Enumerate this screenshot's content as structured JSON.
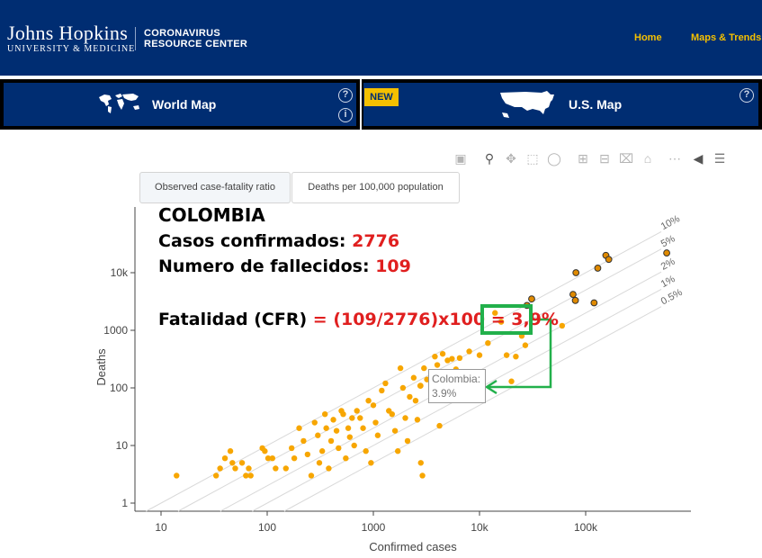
{
  "header": {
    "brand_main": "Johns Hopkins",
    "brand_sub": "UNIVERSITY & MEDICINE",
    "crc_line1": "CORONAVIRUS",
    "crc_line2": "RESOURCE CENTER",
    "nav": {
      "home": "Home",
      "maps": "Maps & Trends"
    }
  },
  "map_tiles": {
    "world": {
      "label": "World Map",
      "icon": "world-map-icon"
    },
    "us": {
      "label": "U.S. Map",
      "icon": "us-map-icon",
      "badge": "NEW"
    }
  },
  "modebar_icons": [
    "camera-icon",
    "zoom-icon",
    "pan-icon",
    "box-select-icon",
    "lasso-icon",
    "zoom-in-icon",
    "zoom-out-icon",
    "autoscale-icon",
    "reset-axes-icon",
    "spike-lines-icon",
    "hover-closest-icon",
    "hover-compare-icon"
  ],
  "tabs": [
    {
      "label": "Observed case-fatality ratio",
      "active": true
    },
    {
      "label": "Deaths per 100,000 population",
      "active": false
    }
  ],
  "annotation": {
    "country": "COLOMBIA",
    "cases_label": "Casos confirmados: ",
    "cases_value": "2776",
    "deaths_label": "Numero de fallecidos: ",
    "deaths_value": "109",
    "cfr_label": "Fatalidad (CFR) ",
    "cfr_formula": "= (109/2776)x100 = ",
    "cfr_value": "3,9%",
    "highlight_color": "#22b04b",
    "text_red": "#e01f1f"
  },
  "tooltip": {
    "name": "Colombia:",
    "value": "3.9%"
  },
  "chart_data": {
    "type": "scatter",
    "xlabel": "Confirmed cases",
    "ylabel": "Deaths",
    "x_scale": "log",
    "y_scale": "log",
    "xlim": [
      5,
      1000000
    ],
    "ylim": [
      0.5,
      50000
    ],
    "x_ticks": [
      {
        "v": 10,
        "label": "10"
      },
      {
        "v": 100,
        "label": "100"
      },
      {
        "v": 1000,
        "label": "1000"
      },
      {
        "v": 10000,
        "label": "10k"
      },
      {
        "v": 100000,
        "label": "100k"
      }
    ],
    "y_ticks": [
      {
        "v": 1,
        "label": "1"
      },
      {
        "v": 10,
        "label": "10"
      },
      {
        "v": 100,
        "label": "100"
      },
      {
        "v": 1000,
        "label": "1000"
      },
      {
        "v": 10000,
        "label": "10k"
      }
    ],
    "cfr_lines": [
      {
        "ratio": 0.1,
        "label": "10%"
      },
      {
        "ratio": 0.05,
        "label": "5%"
      },
      {
        "ratio": 0.02,
        "label": "2%"
      },
      {
        "ratio": 0.01,
        "label": "1%"
      },
      {
        "ratio": 0.005,
        "label": "0.5%"
      }
    ],
    "colors": {
      "point": "#f7a600",
      "highlight_point": "#e08a00",
      "outline": "#333333",
      "line": "#d9d9d9"
    },
    "points": [
      [
        14,
        3
      ],
      [
        33,
        3
      ],
      [
        36,
        4
      ],
      [
        40,
        6
      ],
      [
        45,
        8
      ],
      [
        47,
        5
      ],
      [
        50,
        4
      ],
      [
        58,
        5
      ],
      [
        63,
        3
      ],
      [
        67,
        4
      ],
      [
        70,
        3
      ],
      [
        90,
        9
      ],
      [
        95,
        8
      ],
      [
        102,
        6
      ],
      [
        112,
        6
      ],
      [
        120,
        4
      ],
      [
        150,
        4
      ],
      [
        170,
        9
      ],
      [
        180,
        6
      ],
      [
        200,
        20
      ],
      [
        220,
        12
      ],
      [
        240,
        7
      ],
      [
        260,
        3
      ],
      [
        280,
        25
      ],
      [
        300,
        15
      ],
      [
        310,
        5
      ],
      [
        330,
        8
      ],
      [
        350,
        35
      ],
      [
        360,
        20
      ],
      [
        380,
        4
      ],
      [
        400,
        12
      ],
      [
        420,
        28
      ],
      [
        450,
        18
      ],
      [
        470,
        9
      ],
      [
        500,
        40
      ],
      [
        520,
        35
      ],
      [
        550,
        6
      ],
      [
        580,
        20
      ],
      [
        600,
        14
      ],
      [
        630,
        30
      ],
      [
        660,
        10
      ],
      [
        700,
        40
      ],
      [
        750,
        30
      ],
      [
        800,
        20
      ],
      [
        850,
        8
      ],
      [
        900,
        60
      ],
      [
        950,
        5
      ],
      [
        1000,
        50
      ],
      [
        1050,
        25
      ],
      [
        1100,
        15
      ],
      [
        1200,
        90
      ],
      [
        1300,
        120
      ],
      [
        1400,
        40
      ],
      [
        1500,
        35
      ],
      [
        1600,
        18
      ],
      [
        1700,
        8
      ],
      [
        1800,
        220
      ],
      [
        1900,
        100
      ],
      [
        2000,
        30
      ],
      [
        2100,
        12
      ],
      [
        2200,
        70
      ],
      [
        2400,
        150
      ],
      [
        2500,
        60
      ],
      [
        2600,
        28
      ],
      [
        2800,
        5
      ],
      [
        2900,
        3
      ],
      [
        3000,
        220
      ],
      [
        3200,
        140
      ],
      [
        3500,
        180
      ],
      [
        3800,
        350
      ],
      [
        4000,
        250
      ],
      [
        4200,
        22
      ],
      [
        4500,
        390
      ],
      [
        5000,
        300
      ],
      [
        5500,
        320
      ],
      [
        6000,
        210
      ],
      [
        6500,
        330
      ],
      [
        7000,
        180
      ],
      [
        8000,
        430
      ],
      [
        9000,
        120
      ],
      [
        10000,
        370
      ],
      [
        12000,
        600
      ],
      [
        14000,
        2000
      ],
      [
        16000,
        1400
      ],
      [
        18000,
        370
      ],
      [
        20000,
        130
      ],
      [
        22000,
        350
      ],
      [
        25000,
        800
      ],
      [
        27000,
        550
      ],
      [
        60000,
        1200
      ]
    ],
    "outlined_points": [
      [
        28000,
        2700
      ],
      [
        31000,
        3500
      ],
      [
        81000,
        10000
      ],
      [
        76000,
        4200
      ],
      [
        80000,
        3300
      ],
      [
        120000,
        3000
      ],
      [
        130000,
        12000
      ],
      [
        155000,
        20000
      ],
      [
        165000,
        17000
      ],
      [
        580000,
        22000
      ]
    ],
    "highlight": {
      "name": "Colombia",
      "x": 2776,
      "y": 109
    }
  }
}
